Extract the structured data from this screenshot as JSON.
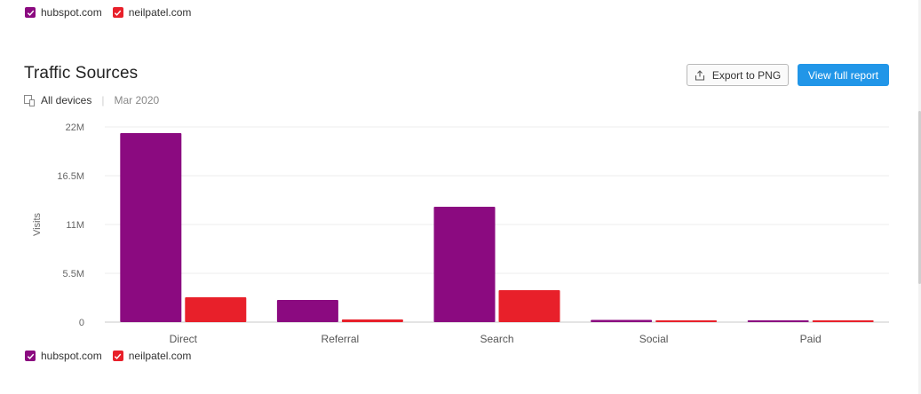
{
  "legend": {
    "items": [
      {
        "label": "hubspot.com",
        "color": "#8b0a80"
      },
      {
        "label": "neilpatel.com",
        "color": "#e8202a"
      }
    ]
  },
  "header": {
    "title": "Traffic Sources",
    "devices": "All devices",
    "date": "Mar 2020",
    "export_label": "Export to PNG",
    "report_label": "View full report"
  },
  "chart_data": {
    "type": "bar",
    "title": "",
    "xlabel": "",
    "ylabel": "Visits",
    "categories": [
      "Direct",
      "Referral",
      "Search",
      "Social",
      "Paid"
    ],
    "y_ticks": [
      "0",
      "5.5M",
      "11M",
      "16.5M",
      "22M"
    ],
    "ylim": [
      0,
      22000000
    ],
    "grid": true,
    "legend_placement": "top-left and bottom-left",
    "series": [
      {
        "name": "hubspot.com",
        "color": "#8b0a80",
        "values": [
          21300000,
          2500000,
          13000000,
          250000,
          200000
        ]
      },
      {
        "name": "neilpatel.com",
        "color": "#e8202a",
        "values": [
          2800000,
          300000,
          3600000,
          200000,
          200000
        ]
      }
    ]
  }
}
